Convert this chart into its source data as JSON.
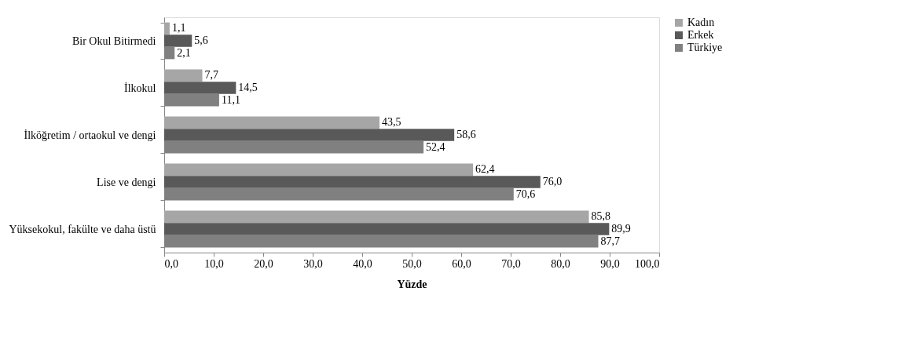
{
  "chart_data": {
    "type": "bar",
    "orientation": "horizontal",
    "xlabel": "Yüzde",
    "categories": [
      "Bir Okul Bitirmedi",
      "İlkokul",
      "İlköğretim / ortaokul ve dengi",
      "Lise ve dengi",
      "Yüksekokul, fakülte ve daha üstü"
    ],
    "series": [
      {
        "name": "Kadın",
        "color": "#a6a6a6",
        "values": [
          1.1,
          7.7,
          43.5,
          62.4,
          85.8
        ],
        "value_labels": [
          "1,1",
          "7,7",
          "43,5",
          "62,4",
          "85,8"
        ]
      },
      {
        "name": "Erkek",
        "color": "#595959",
        "values": [
          5.6,
          14.5,
          58.6,
          76.0,
          89.9
        ],
        "value_labels": [
          "5,6",
          "14,5",
          "58,6",
          "76,0",
          "89,9"
        ]
      },
      {
        "name": "Türkiye",
        "color": "#808080",
        "values": [
          2.1,
          11.1,
          52.4,
          70.6,
          87.7
        ],
        "value_labels": [
          "2,1",
          "11,1",
          "52,4",
          "70,6",
          "87,7"
        ]
      }
    ],
    "xlim": [
      0,
      100
    ],
    "xticks": [
      {
        "value": 0,
        "label": "0,0"
      },
      {
        "value": 10,
        "label": "10,0"
      },
      {
        "value": 20,
        "label": "20,0"
      },
      {
        "value": 30,
        "label": "30,0"
      },
      {
        "value": 40,
        "label": "40,0"
      },
      {
        "value": 50,
        "label": "50,0"
      },
      {
        "value": 60,
        "label": "60,0"
      },
      {
        "value": 70,
        "label": "70,0"
      },
      {
        "value": 80,
        "label": "80,0"
      },
      {
        "value": 90,
        "label": "90,0"
      },
      {
        "value": 100,
        "label": "100,0"
      }
    ],
    "grid": false,
    "legend": "right"
  }
}
